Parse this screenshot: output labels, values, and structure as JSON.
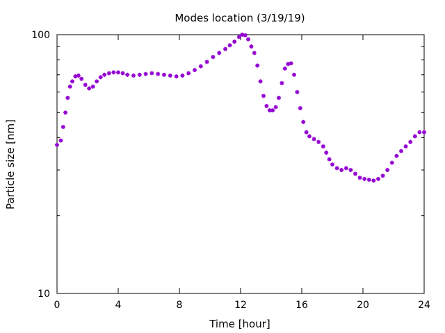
{
  "chart_data": {
    "type": "scatter",
    "title": "Modes location (3/19/19)",
    "xlabel": "Time [hour]",
    "ylabel": "Particle size [nm]",
    "xlim": [
      0,
      24
    ],
    "ylim": [
      10,
      100
    ],
    "yscale": "log",
    "x_ticks": [
      0,
      4,
      8,
      12,
      16,
      20,
      24
    ],
    "x_tick_labels": [
      "0",
      "4",
      "8",
      "12",
      "16",
      "20",
      "24"
    ],
    "y_tick_labels": [
      "10",
      "100"
    ],
    "y_major_ticks": [
      10,
      100
    ],
    "y_minor_ticks": [
      20,
      30,
      40,
      50,
      60,
      70,
      80,
      90
    ],
    "grid": false,
    "legend": "none",
    "marker_color": "#9400d3",
    "series": [
      {
        "points": [
          [
            0.0,
            37.5
          ],
          [
            0.25,
            39
          ],
          [
            0.4,
            44
          ],
          [
            0.55,
            50
          ],
          [
            0.7,
            57
          ],
          [
            0.85,
            63
          ],
          [
            1.0,
            66
          ],
          [
            1.2,
            69
          ],
          [
            1.4,
            69.5
          ],
          [
            1.6,
            67.5
          ],
          [
            1.85,
            64
          ],
          [
            2.1,
            62
          ],
          [
            2.35,
            63
          ],
          [
            2.6,
            66
          ],
          [
            2.85,
            68.5
          ],
          [
            3.1,
            70
          ],
          [
            3.4,
            71
          ],
          [
            3.7,
            71.5
          ],
          [
            4.0,
            71.5
          ],
          [
            4.3,
            71
          ],
          [
            4.6,
            70
          ],
          [
            5.0,
            69.5
          ],
          [
            5.4,
            70
          ],
          [
            5.8,
            70.5
          ],
          [
            6.2,
            71
          ],
          [
            6.6,
            70.5
          ],
          [
            7.0,
            70
          ],
          [
            7.4,
            69.5
          ],
          [
            7.8,
            69
          ],
          [
            8.2,
            69.5
          ],
          [
            8.6,
            71
          ],
          [
            9.0,
            73
          ],
          [
            9.4,
            75.5
          ],
          [
            9.8,
            78.5
          ],
          [
            10.2,
            82
          ],
          [
            10.6,
            85
          ],
          [
            11.0,
            88
          ],
          [
            11.3,
            91
          ],
          [
            11.6,
            94
          ],
          [
            11.9,
            98
          ],
          [
            12.1,
            100
          ],
          [
            12.3,
            99.5
          ],
          [
            12.5,
            96
          ],
          [
            12.7,
            90
          ],
          [
            12.9,
            85
          ],
          [
            13.1,
            76
          ],
          [
            13.3,
            66
          ],
          [
            13.5,
            58
          ],
          [
            13.7,
            53
          ],
          [
            13.9,
            51
          ],
          [
            14.1,
            51
          ],
          [
            14.3,
            52.5
          ],
          [
            14.5,
            57
          ],
          [
            14.7,
            65
          ],
          [
            14.9,
            74
          ],
          [
            15.1,
            77
          ],
          [
            15.3,
            77.5
          ],
          [
            15.5,
            70
          ],
          [
            15.7,
            60
          ],
          [
            15.9,
            52
          ],
          [
            16.1,
            46
          ],
          [
            16.3,
            42
          ],
          [
            16.5,
            40.5
          ],
          [
            16.8,
            39.5
          ],
          [
            17.1,
            38.5
          ],
          [
            17.4,
            37
          ],
          [
            17.6,
            35
          ],
          [
            17.8,
            33
          ],
          [
            18.0,
            31.5
          ],
          [
            18.3,
            30.5
          ],
          [
            18.6,
            30
          ],
          [
            18.9,
            30.5
          ],
          [
            19.2,
            30
          ],
          [
            19.5,
            29
          ],
          [
            19.8,
            28
          ],
          [
            20.1,
            27.7
          ],
          [
            20.4,
            27.5
          ],
          [
            20.7,
            27.3
          ],
          [
            21.0,
            27.7
          ],
          [
            21.3,
            28.5
          ],
          [
            21.6,
            30
          ],
          [
            21.9,
            32
          ],
          [
            22.2,
            34
          ],
          [
            22.5,
            35.5
          ],
          [
            22.8,
            37
          ],
          [
            23.1,
            38.5
          ],
          [
            23.4,
            40.5
          ],
          [
            23.7,
            42
          ],
          [
            24.0,
            42
          ]
        ]
      }
    ]
  }
}
